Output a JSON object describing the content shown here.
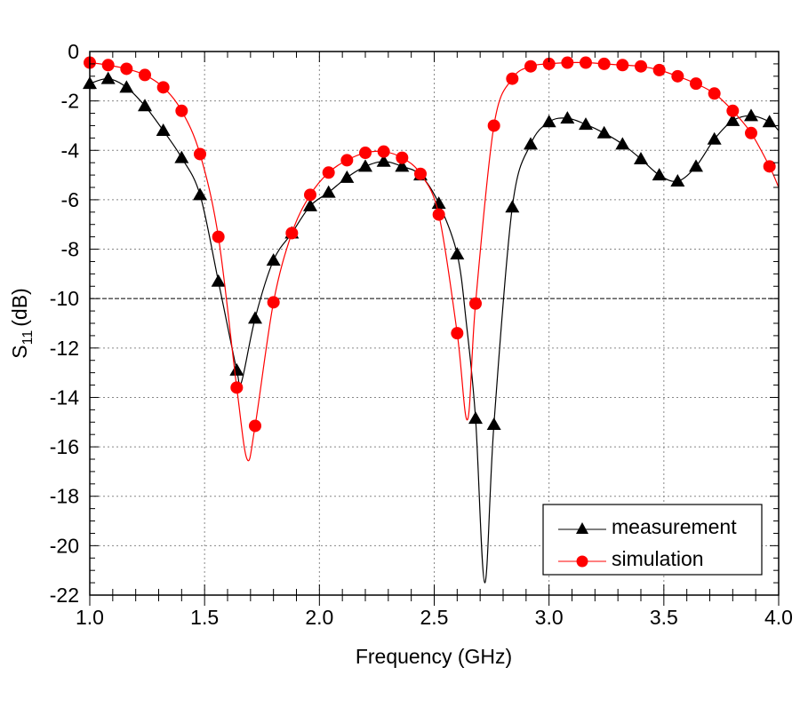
{
  "chart_data": {
    "type": "line",
    "title": "",
    "xlabel": "Frequency (GHz)",
    "ylabel_main": "S",
    "ylabel_sub": "11",
    "ylabel_unit": "(dB)",
    "xlim": [
      1.0,
      4.0
    ],
    "ylim": [
      -22,
      0
    ],
    "xticks": [
      "1.0",
      "1.5",
      "2.0",
      "2.5",
      "3.0",
      "3.5",
      "4.0"
    ],
    "yticks": [
      "0",
      "-2",
      "-4",
      "-6",
      "-8",
      "-10",
      "-12",
      "-14",
      "-16",
      "-18",
      "-20",
      "-22"
    ],
    "grid": true,
    "reference_line_db": -10,
    "legend_position": "bottom-right",
    "marker_x": [
      1.0,
      1.08,
      1.16,
      1.24,
      1.32,
      1.4,
      1.48,
      1.56,
      1.64,
      1.72,
      1.8,
      1.88,
      1.96,
      2.04,
      2.12,
      2.2,
      2.28,
      2.36,
      2.44,
      2.52,
      2.6,
      2.68,
      2.76,
      2.84,
      2.92,
      3.0,
      3.08,
      3.16,
      3.24,
      3.32,
      3.4,
      3.48,
      3.56,
      3.64,
      3.72,
      3.8,
      3.88,
      3.96
    ],
    "series": [
      {
        "name": "measurement",
        "color": "#000000",
        "marker": "triangle",
        "values": [
          -1.3,
          -1.1,
          -1.45,
          -2.2,
          -3.2,
          -4.3,
          -5.8,
          -9.3,
          -12.9,
          -10.8,
          -8.45,
          -7.35,
          -6.25,
          -5.7,
          -5.1,
          -4.65,
          -4.45,
          -4.65,
          -5.0,
          -6.15,
          -8.2,
          -14.85,
          -15.1,
          -6.3,
          -3.75,
          -2.85,
          -2.7,
          -2.95,
          -3.3,
          -3.75,
          -4.35,
          -5.0,
          -5.25,
          -4.65,
          -3.55,
          -2.8,
          -2.6,
          -2.85
        ],
        "extra_curve_points": [
          [
            1.66,
            -13.4
          ],
          [
            2.64,
            -11.0
          ],
          [
            2.72,
            -21.5
          ],
          [
            4.0,
            -3.2
          ]
        ]
      },
      {
        "name": "simulation",
        "color": "#ff0000",
        "marker": "circle",
        "values": [
          -0.45,
          -0.55,
          -0.7,
          -0.95,
          -1.45,
          -2.4,
          -4.15,
          -7.5,
          -13.6,
          -15.15,
          -10.15,
          -7.35,
          -5.8,
          -4.9,
          -4.4,
          -4.1,
          -4.05,
          -4.3,
          -4.95,
          -6.6,
          -11.4,
          -10.2,
          -3.0,
          -1.1,
          -0.6,
          -0.5,
          -0.45,
          -0.45,
          -0.5,
          -0.55,
          -0.6,
          -0.75,
          -1.0,
          -1.3,
          -1.7,
          -2.4,
          -3.3,
          -4.65
        ],
        "extra_curve_points": [
          [
            1.685,
            -16.5
          ],
          [
            2.645,
            -14.9
          ],
          [
            4.0,
            -5.5
          ]
        ]
      }
    ]
  }
}
